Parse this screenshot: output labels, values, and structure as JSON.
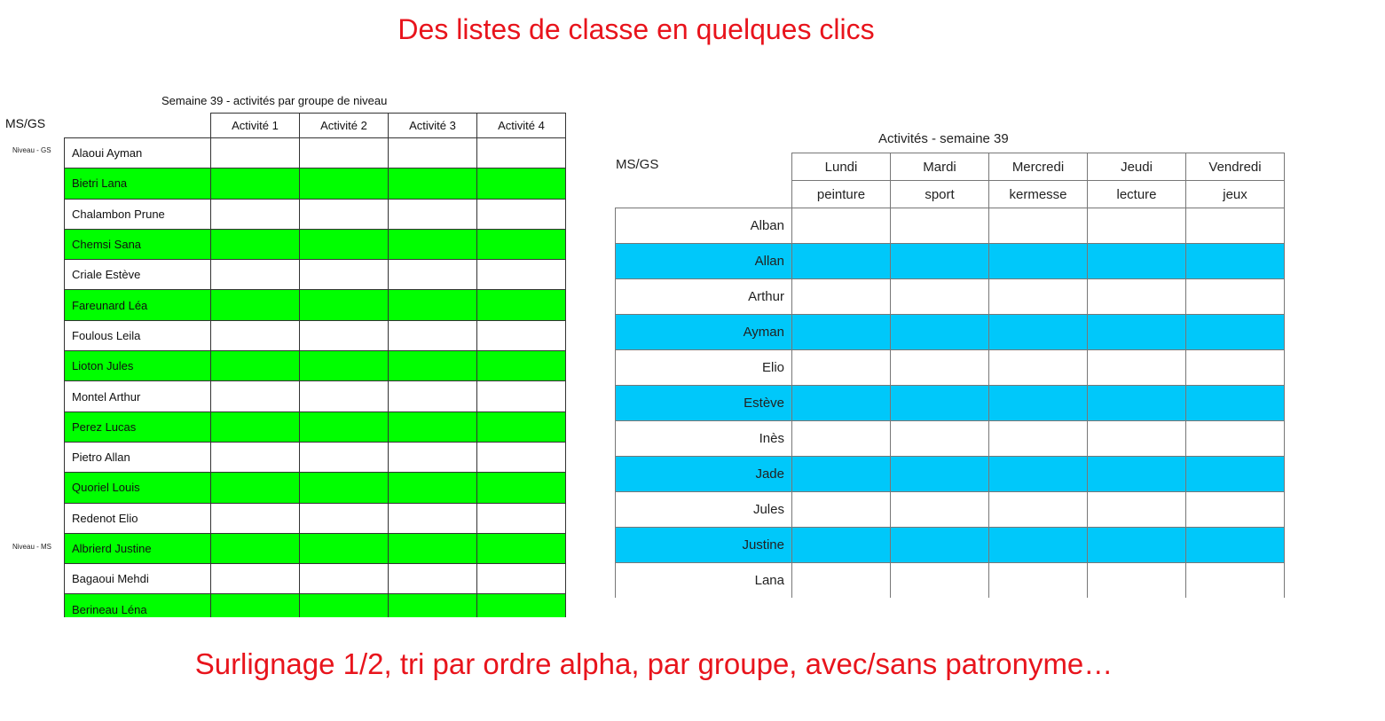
{
  "title": "Des listes de classe en quelques clics",
  "footer": "Surlignage 1/2, tri par ordre alpha, par groupe, avec/sans patronyme…",
  "left_table": {
    "title": "Semaine 39 - activités par groupe de niveau",
    "corner": "MS/GS",
    "columns": [
      "Activité 1",
      "Activité 2",
      "Activité 3",
      "Activité 4"
    ],
    "level_labels": [
      "Niveau - GS",
      "Niveau - MS"
    ],
    "highlight_color": "#00ff00",
    "rows": [
      "Alaoui Ayman",
      "Bietri Lana",
      "Chalambon Prune",
      "Chemsi Sana",
      "Criale Estève",
      "Fareunard Léa",
      "Foulous Leila",
      "Lioton Jules",
      "Montel Arthur",
      "Perez Lucas",
      "Pietro Allan",
      "Quoriel Louis",
      "Redenot Elio",
      "Albrierd Justine",
      "Bagaoui Mehdi",
      "Berineau Léna"
    ]
  },
  "right_table": {
    "title": "Activités - semaine 39",
    "corner": "MS/GS",
    "days": [
      "Lundi",
      "Mardi",
      "Mercredi",
      "Jeudi",
      "Vendredi"
    ],
    "activities": [
      "peinture",
      "sport",
      "kermesse",
      "lecture",
      "jeux"
    ],
    "highlight_color": "#00c8fa",
    "rows": [
      "Alban",
      "Allan",
      "Arthur",
      "Ayman",
      "Elio",
      "Estève",
      "Inès",
      "Jade",
      "Jules",
      "Justine",
      "Lana"
    ]
  }
}
